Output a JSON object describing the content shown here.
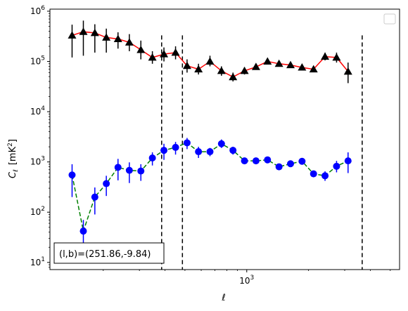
{
  "chart_data": {
    "type": "scatter",
    "xscale": "log",
    "yscale": "log",
    "xlim": [
      110,
      5550
    ],
    "ylim": [
      7.2,
      1100000
    ],
    "xlabel": "ℓ",
    "ylabel": "C_ℓ [mK²]",
    "ylabel_main": "C",
    "ylabel_sub": "ℓ",
    "ylabel_unit_pre": "[mK",
    "ylabel_unit_sup": "2",
    "ylabel_unit_post": "]",
    "x_ticks": [
      {
        "value": 1000,
        "base": "10",
        "exp": "3"
      }
    ],
    "y_ticks": [
      {
        "value": 10,
        "base": "10",
        "exp": "1"
      },
      {
        "value": 100,
        "base": "10",
        "exp": "2"
      },
      {
        "value": 1000,
        "base": "10",
        "exp": "3"
      },
      {
        "value": 10000,
        "base": "10",
        "exp": "4"
      },
      {
        "value": 100000,
        "base": "10",
        "exp": "5"
      },
      {
        "value": 1000000,
        "base": "10",
        "exp": "6"
      }
    ],
    "x_minor_ticks": [
      200,
      300,
      400,
      500,
      600,
      700,
      800,
      900,
      2000,
      3000,
      4000,
      5000
    ],
    "annotation": "(l,b)=(251.86,-9.84)",
    "legend": {
      "placement": "upper right",
      "entries": []
    },
    "vlines": [
      385,
      486,
      3650
    ],
    "series": [
      {
        "color": "#ff0000",
        "marker_color": "#000000",
        "marker": "triangle",
        "line_style": "solid",
        "points": [
          {
            "x": 141,
            "y": 330000,
            "lo": 120000,
            "hi": 540000
          },
          {
            "x": 160,
            "y": 390000,
            "lo": 130000,
            "hi": 650000
          },
          {
            "x": 182,
            "y": 370000,
            "lo": 150000,
            "hi": 550000
          },
          {
            "x": 207,
            "y": 300000,
            "lo": 150000,
            "hi": 450000
          },
          {
            "x": 236,
            "y": 280000,
            "lo": 180000,
            "hi": 380000
          },
          {
            "x": 268,
            "y": 240000,
            "lo": 160000,
            "hi": 350000
          },
          {
            "x": 305,
            "y": 170000,
            "lo": 110000,
            "hi": 260000
          },
          {
            "x": 347,
            "y": 120000,
            "lo": 90000,
            "hi": 160000
          },
          {
            "x": 395,
            "y": 140000,
            "lo": 100000,
            "hi": 190000
          },
          {
            "x": 450,
            "y": 150000,
            "lo": 110000,
            "hi": 200000
          },
          {
            "x": 512,
            "y": 82000,
            "lo": 60000,
            "hi": 110000
          },
          {
            "x": 582,
            "y": 70000,
            "lo": 55000,
            "hi": 90000
          },
          {
            "x": 662,
            "y": 100000,
            "lo": 80000,
            "hi": 130000
          },
          {
            "x": 753,
            "y": 65000,
            "lo": 52000,
            "hi": 80000
          },
          {
            "x": 857,
            "y": 49000,
            "lo": 40000,
            "hi": 60000
          },
          {
            "x": 975,
            "y": 65000,
            "lo": 55000,
            "hi": 76000
          },
          {
            "x": 1109,
            "y": 78000,
            "lo": 68000,
            "hi": 90000
          },
          {
            "x": 1262,
            "y": 100000,
            "lo": 88000,
            "hi": 114000
          },
          {
            "x": 1436,
            "y": 90000,
            "lo": 80000,
            "hi": 101000
          },
          {
            "x": 1634,
            "y": 85000,
            "lo": 76000,
            "hi": 95000
          },
          {
            "x": 1859,
            "y": 76000,
            "lo": 68000,
            "hi": 85000
          },
          {
            "x": 2115,
            "y": 70000,
            "lo": 62000,
            "hi": 79000
          },
          {
            "x": 2406,
            "y": 125000,
            "lo": 105000,
            "hi": 150000
          },
          {
            "x": 2738,
            "y": 120000,
            "lo": 95000,
            "hi": 150000
          },
          {
            "x": 3115,
            "y": 63000,
            "lo": 37000,
            "hi": 95000
          }
        ]
      },
      {
        "color": "#008000",
        "marker_color": "#0000ff",
        "marker": "circle",
        "line_style": "dashed",
        "points": [
          {
            "x": 141,
            "y": 550,
            "lo": 200,
            "hi": 900
          },
          {
            "x": 160,
            "y": 42,
            "lo": 15,
            "hi": 70
          },
          {
            "x": 182,
            "y": 200,
            "lo": 90,
            "hi": 310
          },
          {
            "x": 207,
            "y": 370,
            "lo": 210,
            "hi": 530
          },
          {
            "x": 236,
            "y": 780,
            "lo": 430,
            "hi": 1150
          },
          {
            "x": 268,
            "y": 680,
            "lo": 380,
            "hi": 980
          },
          {
            "x": 305,
            "y": 660,
            "lo": 420,
            "hi": 900
          },
          {
            "x": 347,
            "y": 1200,
            "lo": 850,
            "hi": 1550
          },
          {
            "x": 395,
            "y": 1700,
            "lo": 1100,
            "hi": 2300
          },
          {
            "x": 450,
            "y": 1950,
            "lo": 1400,
            "hi": 2500
          },
          {
            "x": 512,
            "y": 2400,
            "lo": 1800,
            "hi": 3000
          },
          {
            "x": 582,
            "y": 1600,
            "lo": 1200,
            "hi": 2000
          },
          {
            "x": 662,
            "y": 1600,
            "lo": 1300,
            "hi": 1900
          },
          {
            "x": 753,
            "y": 2300,
            "lo": 1900,
            "hi": 2800
          },
          {
            "x": 857,
            "y": 1700,
            "lo": 1400,
            "hi": 2000
          },
          {
            "x": 975,
            "y": 1050,
            "lo": 900,
            "hi": 1200
          },
          {
            "x": 1109,
            "y": 1050,
            "lo": 900,
            "hi": 1200
          },
          {
            "x": 1262,
            "y": 1100,
            "lo": 950,
            "hi": 1250
          },
          {
            "x": 1436,
            "y": 800,
            "lo": 700,
            "hi": 900
          },
          {
            "x": 1634,
            "y": 920,
            "lo": 800,
            "hi": 1050
          },
          {
            "x": 1859,
            "y": 1030,
            "lo": 900,
            "hi": 1150
          },
          {
            "x": 2115,
            "y": 580,
            "lo": 500,
            "hi": 660
          },
          {
            "x": 2406,
            "y": 530,
            "lo": 420,
            "hi": 650
          },
          {
            "x": 2738,
            "y": 820,
            "lo": 620,
            "hi": 1050
          },
          {
            "x": 3115,
            "y": 1050,
            "lo": 600,
            "hi": 1550
          }
        ]
      }
    ]
  }
}
